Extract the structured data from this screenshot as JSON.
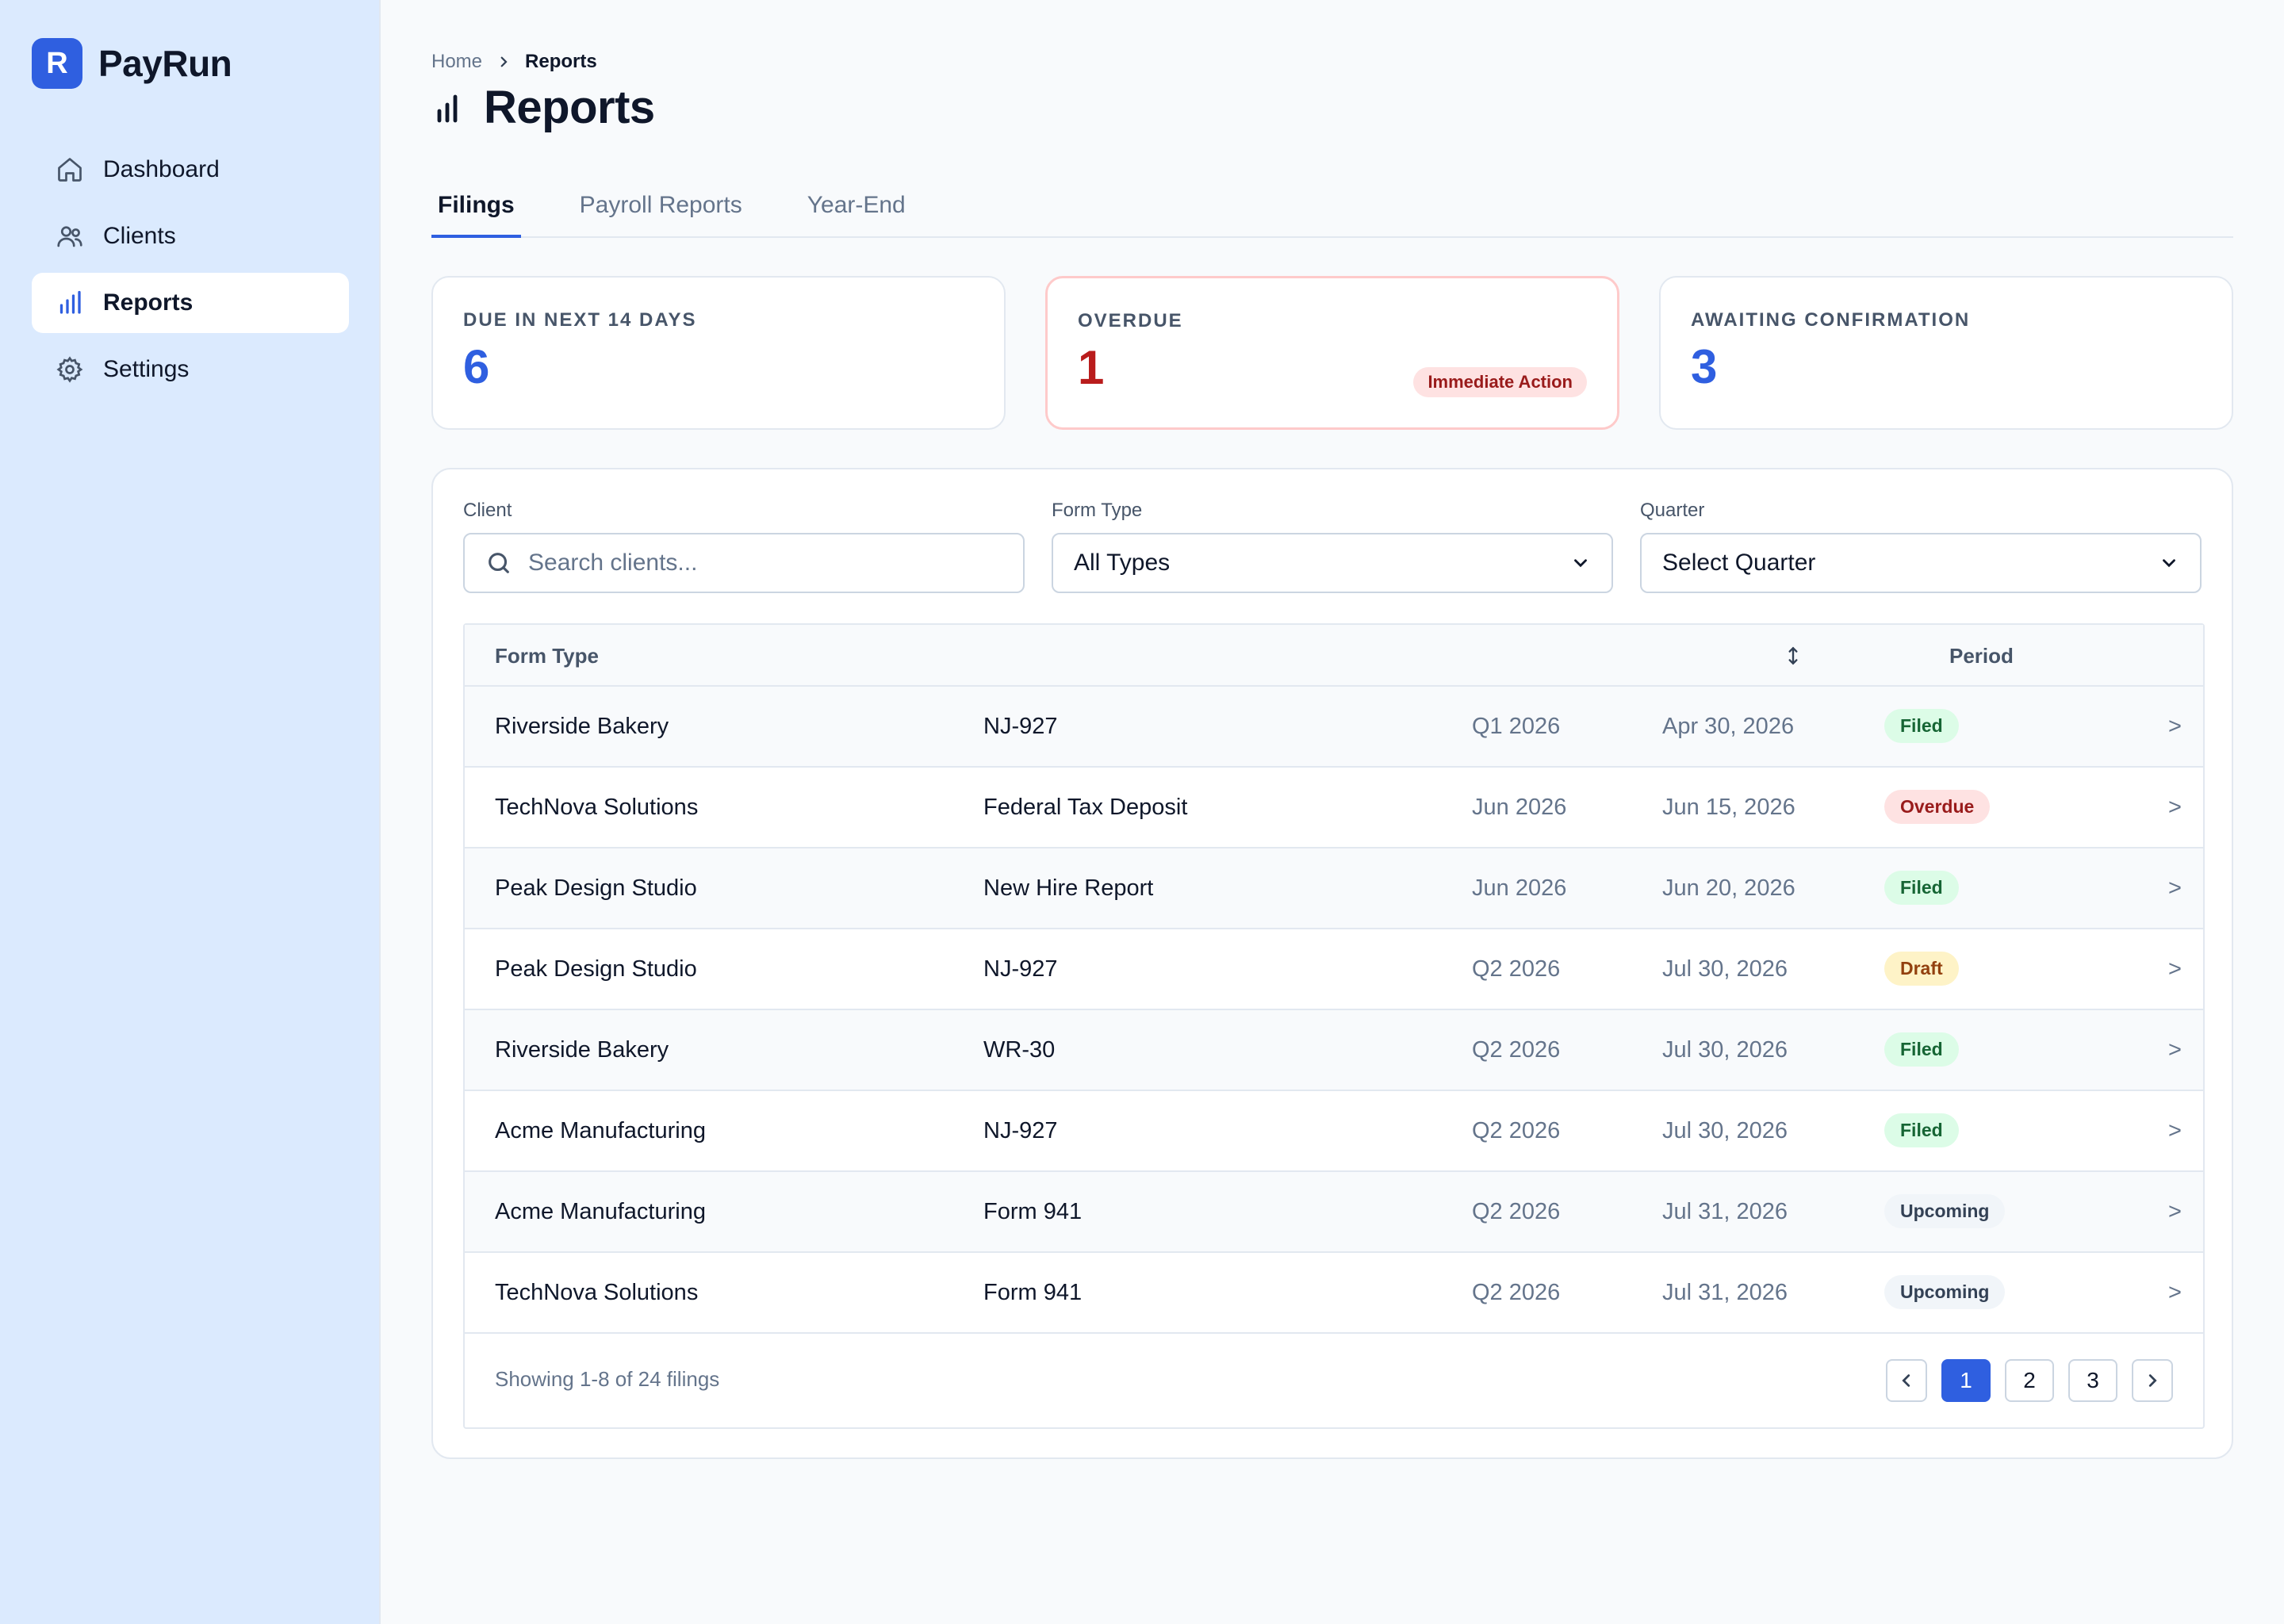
{
  "brand": {
    "logo_letter": "R",
    "name": "PayRun"
  },
  "sidebar": {
    "items": [
      {
        "label": "Dashboard",
        "icon": "home-icon"
      },
      {
        "label": "Clients",
        "icon": "users-icon"
      },
      {
        "label": "Reports",
        "icon": "bar-chart-icon",
        "active": true
      },
      {
        "label": "Settings",
        "icon": "gear-icon"
      }
    ]
  },
  "breadcrumb": {
    "home": "Home",
    "current": "Reports"
  },
  "page": {
    "title": "Reports"
  },
  "tabs": [
    {
      "label": "Filings",
      "active": true
    },
    {
      "label": "Payroll Reports"
    },
    {
      "label": "Year-End"
    }
  ],
  "cards": [
    {
      "label": "DUE IN NEXT 14 DAYS",
      "value": "6"
    },
    {
      "label": "OVERDUE",
      "value": "1",
      "badge": "Immediate Action"
    },
    {
      "label": "AWAITING CONFIRMATION",
      "value": "3"
    }
  ],
  "filters": {
    "client": {
      "label": "Client",
      "placeholder": "Search clients..."
    },
    "form_type": {
      "label": "Form Type",
      "value": "All Types"
    },
    "quarter": {
      "label": "Quarter",
      "value": "Select Quarter"
    }
  },
  "table": {
    "headers": {
      "form_type": "Form Type",
      "period": "Period"
    },
    "rows": [
      {
        "client": "Riverside Bakery",
        "form": "NJ-927",
        "period": "Q1 2026",
        "due": "Apr 30, 2026",
        "status": "Filed"
      },
      {
        "client": "TechNova Solutions",
        "form": "Federal Tax Deposit",
        "period": "Jun 2026",
        "due": "Jun 15, 2026",
        "status": "Overdue"
      },
      {
        "client": "Peak Design Studio",
        "form": "New Hire Report",
        "period": "Jun 2026",
        "due": "Jun 20, 2026",
        "status": "Filed"
      },
      {
        "client": "Peak Design Studio",
        "form": "NJ-927",
        "period": "Q2 2026",
        "due": "Jul 30, 2026",
        "status": "Draft"
      },
      {
        "client": "Riverside Bakery",
        "form": "WR-30",
        "period": "Q2 2026",
        "due": "Jul 30, 2026",
        "status": "Filed"
      },
      {
        "client": "Acme Manufacturing",
        "form": "NJ-927",
        "period": "Q2 2026",
        "due": "Jul 30, 2026",
        "status": "Filed"
      },
      {
        "client": "Acme Manufacturing",
        "form": "Form 941",
        "period": "Q2 2026",
        "due": "Jul 31, 2026",
        "status": "Upcoming"
      },
      {
        "client": "TechNova Solutions",
        "form": "Form 941",
        "period": "Q2 2026",
        "due": "Jul 31, 2026",
        "status": "Upcoming"
      }
    ],
    "row_arrow": ">",
    "footer": {
      "showing": "Showing 1-8 of 24 filings"
    }
  },
  "pagination": {
    "pages": [
      "1",
      "2",
      "3"
    ],
    "current": "1"
  },
  "colors": {
    "accent": "#2f5fe0",
    "sidebar_bg": "#dbeafe",
    "danger": "#b91c1c"
  }
}
